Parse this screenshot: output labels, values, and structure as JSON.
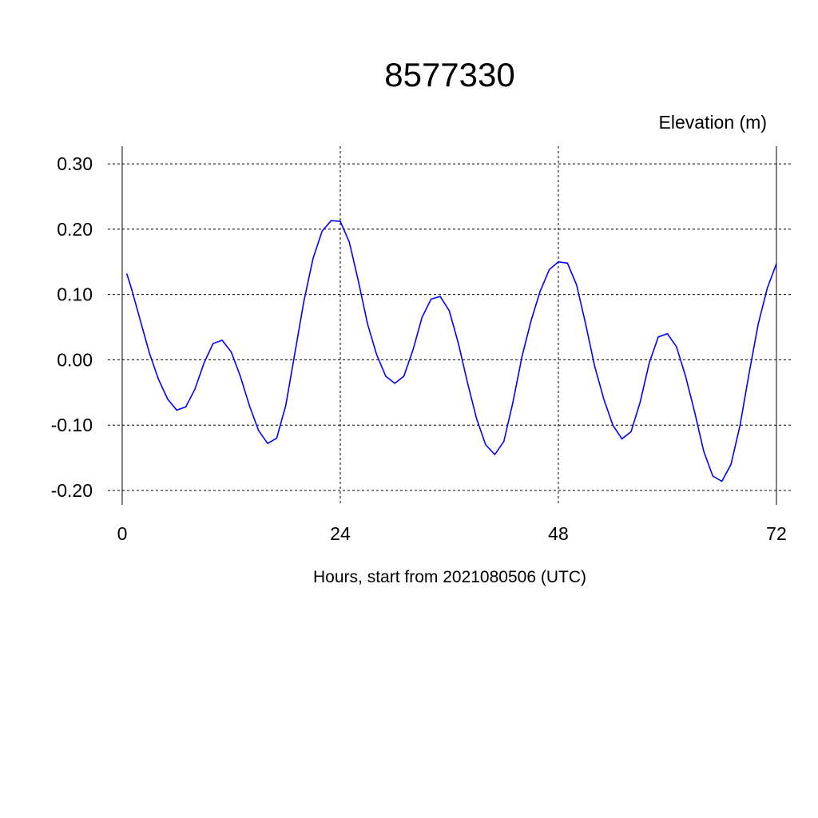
{
  "chart_data": {
    "type": "line",
    "title": "8577330",
    "y_label": "Elevation (m)",
    "x_label": "Hours, start from 2021080506 (UTC)",
    "x": [
      0.5,
      1,
      2,
      3,
      4,
      5,
      6,
      7,
      8,
      9,
      10,
      11,
      12,
      13,
      14,
      15,
      16,
      17,
      18,
      19,
      20,
      21,
      22,
      23,
      24,
      25,
      26,
      27,
      28,
      29,
      30,
      31,
      32,
      33,
      34,
      35,
      36,
      37,
      38,
      39,
      40,
      41,
      42,
      43,
      44,
      45,
      46,
      47,
      48,
      49,
      50,
      51,
      52,
      53,
      54,
      55,
      56,
      57,
      58,
      59,
      60,
      61,
      62,
      63,
      64,
      65,
      66,
      67,
      68,
      69,
      70,
      71,
      72
    ],
    "series": [
      {
        "color": "#0000ff",
        "values": [
          0.132,
          0.11,
          0.06,
          0.01,
          -0.03,
          -0.06,
          -0.077,
          -0.072,
          -0.045,
          -0.005,
          0.025,
          0.03,
          0.012,
          -0.025,
          -0.07,
          -0.108,
          -0.128,
          -0.12,
          -0.07,
          0.01,
          0.09,
          0.155,
          0.197,
          0.213,
          0.212,
          0.18,
          0.12,
          0.055,
          0.008,
          -0.025,
          -0.036,
          -0.025,
          0.015,
          0.065,
          0.093,
          0.097,
          0.075,
          0.025,
          -0.035,
          -0.09,
          -0.13,
          -0.145,
          -0.125,
          -0.065,
          0.005,
          0.06,
          0.105,
          0.138,
          0.15,
          0.148,
          0.115,
          0.055,
          -0.01,
          -0.06,
          -0.1,
          -0.121,
          -0.11,
          -0.065,
          -0.005,
          0.035,
          0.04,
          0.02,
          -0.025,
          -0.08,
          -0.14,
          -0.178,
          -0.186,
          -0.16,
          -0.1,
          -0.02,
          0.055,
          0.11,
          0.147
        ]
      }
    ],
    "xlim": [
      -1.58,
      73.85
    ],
    "ylim": [
      -0.222,
      0.327
    ],
    "xticks": [
      0,
      24,
      48,
      72
    ],
    "yticks": [
      {
        "value": -0.2,
        "label": "-0.20"
      },
      {
        "value": -0.1,
        "label": "-0.10"
      },
      {
        "value": 0,
        "label": "0.00"
      },
      {
        "value": 0.1,
        "label": "0.10"
      },
      {
        "value": 0.2,
        "label": "0.20"
      },
      {
        "value": 0.3,
        "label": "0.30"
      }
    ],
    "grid": true
  }
}
